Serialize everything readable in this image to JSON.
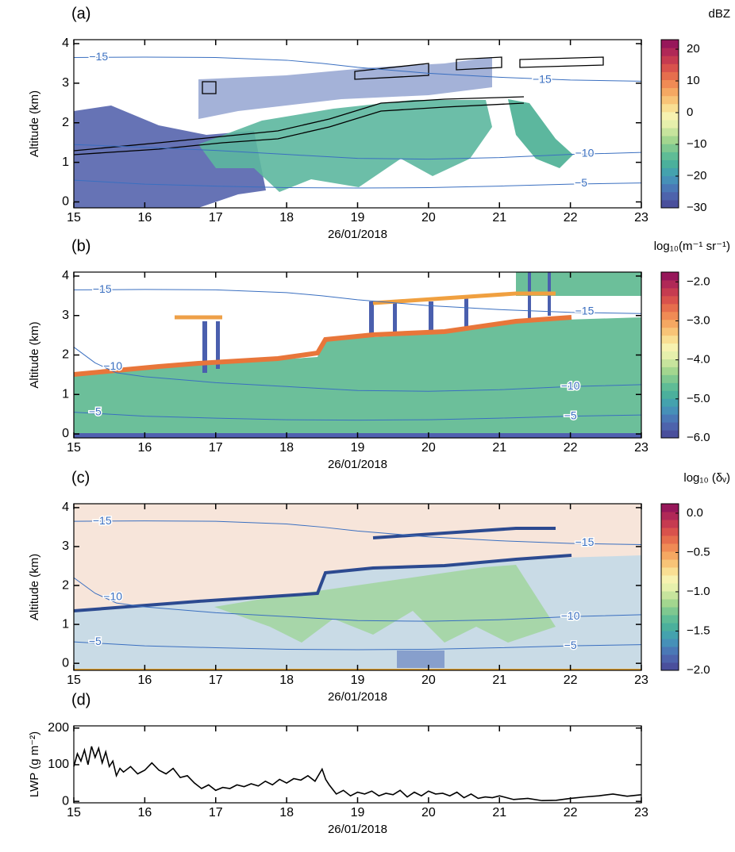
{
  "chart_data": [
    {
      "type": "curtain",
      "label": "(a)",
      "ylabel": "Altitude (km)",
      "xlabel": "26/01/2018",
      "xlim": [
        15,
        23
      ],
      "xticks": [
        15,
        16,
        17,
        18,
        19,
        20,
        21,
        22,
        23
      ],
      "ylim": [
        -0.15,
        4.1
      ],
      "yticks": [
        0,
        1,
        2,
        3,
        4
      ],
      "contours": [
        {
          "x": [
            15,
            16,
            17,
            18,
            18.5,
            19,
            20,
            21,
            22,
            23
          ],
          "y": [
            3.65,
            3.66,
            3.65,
            3.58,
            3.5,
            3.4,
            3.25,
            3.15,
            3.08,
            3.05
          ]
        },
        {
          "x": [
            15,
            16,
            17,
            18,
            19,
            20,
            21,
            22,
            23
          ],
          "y": [
            1.45,
            1.38,
            1.3,
            1.2,
            1.1,
            1.08,
            1.12,
            1.2,
            1.25
          ]
        },
        {
          "x": [
            15,
            16,
            17,
            18,
            19,
            20,
            21,
            22,
            23
          ],
          "y": [
            0.55,
            0.45,
            0.4,
            0.36,
            0.35,
            0.36,
            0.4,
            0.45,
            0.48
          ]
        }
      ],
      "contour_labels": [
        {
          "text": "−15",
          "x": 15.35,
          "y": 3.65
        },
        {
          "text": "−15",
          "x": 21.6,
          "y": 3.08
        },
        {
          "text": "−10",
          "x": 22.2,
          "y": 1.22
        },
        {
          "text": "−5",
          "x": 22.15,
          "y": 0.47
        }
      ],
      "colorbar": {
        "title": "dBZ",
        "lim": [
          -30,
          23
        ],
        "ticks": [
          {
            "value": -30,
            "label": "−30"
          },
          {
            "value": -20,
            "label": "−20"
          },
          {
            "value": -10,
            "label": "−10"
          },
          0,
          10,
          20
        ],
        "colors": [
          "#4a4f9c",
          "#4d63ac",
          "#4a78b6",
          "#4690b8",
          "#44a2ae",
          "#4bb09c",
          "#5fbc96",
          "#7fc890",
          "#a3d68f",
          "#c7e49d",
          "#e6f0ac",
          "#f7f2b0",
          "#f9df93",
          "#f8c477",
          "#f5a862",
          "#f08b55",
          "#e66e4d",
          "#d9524c",
          "#c63b50",
          "#b02857",
          "#97175a"
        ]
      }
    },
    {
      "type": "curtain",
      "label": "(b)",
      "ylabel": "Altitude (km)",
      "xlabel": "26/01/2018",
      "xlim": [
        15,
        23
      ],
      "xticks": [
        15,
        16,
        17,
        18,
        19,
        20,
        21,
        22,
        23
      ],
      "ylim": [
        -0.1,
        4.1
      ],
      "yticks": [
        0,
        1,
        2,
        3,
        4
      ],
      "contours": [
        {
          "x": [
            15,
            16,
            17,
            18,
            18.5,
            19,
            20,
            21,
            22,
            23
          ],
          "y": [
            3.65,
            3.66,
            3.65,
            3.58,
            3.5,
            3.4,
            3.25,
            3.15,
            3.08,
            3.05
          ]
        },
        {
          "x": [
            15,
            15.3,
            15.6,
            16,
            17,
            18,
            19,
            20,
            21,
            22,
            23
          ],
          "y": [
            2.2,
            1.8,
            1.55,
            1.45,
            1.3,
            1.2,
            1.1,
            1.08,
            1.12,
            1.2,
            1.25
          ]
        },
        {
          "x": [
            15,
            16,
            17,
            18,
            19,
            20,
            21,
            22,
            23
          ],
          "y": [
            0.55,
            0.45,
            0.4,
            0.36,
            0.35,
            0.36,
            0.4,
            0.45,
            0.48
          ]
        }
      ],
      "contour_labels": [
        {
          "text": "−15",
          "x": 15.4,
          "y": 3.65
        },
        {
          "text": "−15",
          "x": 22.2,
          "y": 3.1
        },
        {
          "text": "−10",
          "x": 15.55,
          "y": 1.7
        },
        {
          "text": "−10",
          "x": 22.0,
          "y": 1.2
        },
        {
          "text": "−5",
          "x": 15.3,
          "y": 0.55
        },
        {
          "text": "−5",
          "x": 22.0,
          "y": 0.45
        }
      ],
      "colorbar": {
        "title": "log₁₀(m⁻¹ sr⁻¹)",
        "lim": [
          -6,
          -1.75
        ],
        "ticks": [
          {
            "value": -2,
            "label": "−2.0"
          },
          {
            "value": -3,
            "label": "−3.0"
          },
          {
            "value": -4,
            "label": "−4.0"
          },
          {
            "value": -5,
            "label": "−5.0"
          },
          {
            "value": -6,
            "label": "−6.0"
          }
        ],
        "colors": [
          "#4a4f9c",
          "#4d63ac",
          "#4a78b6",
          "#4690b8",
          "#44a2ae",
          "#4bb09c",
          "#5fbc96",
          "#7fc890",
          "#a3d68f",
          "#c7e49d",
          "#e6f0ac",
          "#f7f2b0",
          "#f9df93",
          "#f8c477",
          "#f5a862",
          "#f08b55",
          "#e66e4d",
          "#d9524c",
          "#c63b50",
          "#b02857",
          "#97175a"
        ]
      }
    },
    {
      "type": "curtain",
      "label": "(c)",
      "ylabel": "Altitude (km)",
      "xlabel": "26/01/2018",
      "xlim": [
        15,
        23
      ],
      "xticks": [
        15,
        16,
        17,
        18,
        19,
        20,
        21,
        22,
        23
      ],
      "ylim": [
        -0.18,
        4.1
      ],
      "yticks": [
        0,
        1,
        2,
        3,
        4
      ],
      "contours": [
        {
          "x": [
            15,
            16,
            17,
            18,
            18.5,
            19,
            20,
            21,
            22,
            23
          ],
          "y": [
            3.65,
            3.66,
            3.65,
            3.58,
            3.5,
            3.4,
            3.25,
            3.15,
            3.08,
            3.05
          ]
        },
        {
          "x": [
            15,
            15.3,
            15.6,
            16,
            17,
            18,
            19,
            20,
            21,
            22,
            23
          ],
          "y": [
            2.2,
            1.8,
            1.55,
            1.45,
            1.3,
            1.2,
            1.1,
            1.08,
            1.12,
            1.2,
            1.25
          ]
        },
        {
          "x": [
            15,
            16,
            17,
            18,
            19,
            20,
            21,
            22,
            23
          ],
          "y": [
            0.55,
            0.45,
            0.4,
            0.36,
            0.35,
            0.36,
            0.4,
            0.45,
            0.48
          ]
        }
      ],
      "contour_labels": [
        {
          "text": "−15",
          "x": 15.4,
          "y": 3.65
        },
        {
          "text": "−15",
          "x": 22.2,
          "y": 3.1
        },
        {
          "text": "−10",
          "x": 15.55,
          "y": 1.7
        },
        {
          "text": "−10",
          "x": 22.0,
          "y": 1.2
        },
        {
          "text": "−5",
          "x": 15.3,
          "y": 0.55
        },
        {
          "text": "−5",
          "x": 22.0,
          "y": 0.45
        }
      ],
      "colorbar": {
        "title": "log₁₀ (δᵥ)",
        "lim": [
          -2,
          0.12
        ],
        "ticks": [
          {
            "value": 0,
            "label": "0.0"
          },
          {
            "value": -0.5,
            "label": "−0.5"
          },
          {
            "value": -1,
            "label": "−1.0"
          },
          {
            "value": -1.5,
            "label": "−1.5"
          },
          {
            "value": -2,
            "label": "−2.0"
          }
        ],
        "colors": [
          "#4a4f9c",
          "#4d63ac",
          "#4a78b6",
          "#4690b8",
          "#44a2ae",
          "#4bb09c",
          "#5fbc96",
          "#7fc890",
          "#a3d68f",
          "#c7e49d",
          "#e6f0ac",
          "#f7f2b0",
          "#f9df93",
          "#f8c477",
          "#f5a862",
          "#f08b55",
          "#e66e4d",
          "#d9524c",
          "#c63b50",
          "#b02857",
          "#97175a"
        ]
      }
    },
    {
      "type": "line",
      "label": "(d)",
      "ylabel": "LWP (g m⁻²)",
      "xlabel": "26/01/2018",
      "xlim": [
        15,
        23
      ],
      "xticks": [
        15,
        16,
        17,
        18,
        19,
        20,
        21,
        22,
        23
      ],
      "ylim": [
        -4,
        206
      ],
      "yticks": [
        0,
        100,
        200
      ],
      "color": "#000000",
      "x": [
        15.0,
        15.05,
        15.1,
        15.15,
        15.2,
        15.25,
        15.3,
        15.35,
        15.4,
        15.45,
        15.5,
        15.55,
        15.6,
        15.65,
        15.7,
        15.8,
        15.9,
        16.0,
        16.1,
        16.2,
        16.3,
        16.4,
        16.5,
        16.6,
        16.7,
        16.8,
        16.9,
        17.0,
        17.1,
        17.2,
        17.3,
        17.4,
        17.5,
        17.6,
        17.7,
        17.8,
        17.9,
        18.0,
        18.1,
        18.2,
        18.3,
        18.4,
        18.5,
        18.55,
        18.6,
        18.7,
        18.8,
        18.9,
        19.0,
        19.1,
        19.2,
        19.3,
        19.4,
        19.5,
        19.6,
        19.7,
        19.8,
        19.9,
        20.0,
        20.1,
        20.2,
        20.3,
        20.4,
        20.5,
        20.6,
        20.7,
        20.8,
        20.9,
        21.0,
        21.2,
        21.4,
        21.6,
        21.8,
        22.0,
        22.2,
        22.4,
        22.6,
        22.8,
        23.0
      ],
      "values": [
        95,
        130,
        110,
        140,
        100,
        150,
        120,
        145,
        105,
        135,
        95,
        110,
        70,
        90,
        80,
        95,
        75,
        85,
        105,
        85,
        75,
        90,
        65,
        70,
        50,
        35,
        45,
        30,
        38,
        35,
        45,
        40,
        48,
        42,
        55,
        45,
        60,
        50,
        62,
        58,
        70,
        55,
        88,
        60,
        45,
        20,
        30,
        15,
        25,
        20,
        28,
        15,
        22,
        18,
        30,
        12,
        25,
        15,
        28,
        20,
        22,
        15,
        25,
        10,
        20,
        8,
        12,
        10,
        15,
        5,
        8,
        2,
        3,
        8,
        12,
        15,
        20,
        14,
        18
      ]
    }
  ]
}
